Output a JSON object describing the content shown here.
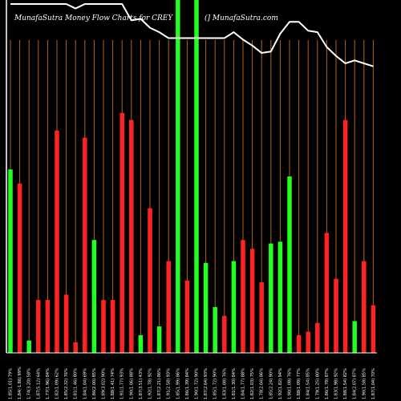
{
  "header": {
    "title": "MunafaSutra  Money Flow  Charts for CREY",
    "credit": "(] MunafaSutra.com"
  },
  "colors": {
    "background": "#000000",
    "up": "#22ff22",
    "down": "#ff2222",
    "grid": "#b5651d",
    "line": "#ffffff",
    "text": "#ffffff"
  },
  "chart_data": {
    "type": "bar",
    "title": "MunafaSutra  Money Flow  Charts for CREY",
    "xlabel": "",
    "ylabel": "",
    "grid": true,
    "bar_range": [
      0,
      100
    ],
    "line_range": [
      0,
      100
    ],
    "categories": [
      "",
      "",
      "",
      "",
      "",
      "",
      "",
      "",
      "",
      "",
      "",
      "",
      "",
      "",
      "",
      "",
      "",
      "",
      "",
      "",
      "",
      "",
      "",
      "",
      "",
      "",
      "",
      "",
      "",
      "",
      "",
      "",
      "",
      "",
      "",
      "",
      "",
      "",
      "",
      ""
    ],
    "x_tick_labels": [
      "1.85(1.01) 79%",
      "1.84(-1.86) 99%",
      "1.74(3.20) 58%",
      "1.87(5.12) 64%",
      "1.77(1.96) 84%",
      "1.82(1.09) 62%",
      "1.85(2.32) 76%",
      "1.81(1.46) 80%",
      "1.84(1.04) 69%",
      "1.86(2.00) 85%",
      "1.89(3.02) 90%",
      "1.88(1.41) 74%",
      "1.91(1.77) 93%",
      "1.90(1.06) 88%",
      "1.87(3.51) 43%",
      "1.92(1.78) 92%",
      "1.87(2.21) 86%",
      "1.91(2.58) 93%",
      "1.85(1.99) 86%",
      "1.86(1.39) 84%",
      "1.90(1.72) 90%",
      "1.87(2.64) 93%",
      "1.85(1.72) 90%",
      "1.83(1.08) 76%",
      "1.81(1.30) 84%",
      "1.84(1.77) 88%",
      "1.82(1.03) 75%",
      "1.78(2.04) 86%",
      "1.85(2.24) 90%",
      "1.92(1.82) 94%",
      "1.90(1.08) 76%",
      "1.88(1.09) 77%",
      "1.84(1.54) 85%",
      "1.79(1.25) 80%",
      "1.86(1.78) 87%",
      "1.83(1.98) 92%",
      "1.88(1.54) 82%",
      "1.84(2.07) 87%",
      "1.90(1.58) 85%",
      "1.87(1.04) 70%"
    ],
    "series": [
      {
        "values": [
          52,
          48,
          3.5,
          15,
          15,
          63,
          16.5,
          3,
          61,
          32,
          15,
          15,
          68,
          66,
          5,
          41,
          7.5,
          26,
          100,
          20.5,
          100,
          25.5,
          13,
          10.5,
          26,
          32,
          29.5,
          20,
          31,
          31.5,
          50,
          5,
          6,
          8.5,
          34,
          21,
          66,
          9,
          26,
          13.5
        ],
        "directions": [
          "up",
          "down",
          "up",
          "down",
          "down",
          "down",
          "down",
          "down",
          "down",
          "up",
          "down",
          "down",
          "down",
          "down",
          "up",
          "down",
          "up",
          "down",
          "up",
          "down",
          "up",
          "up",
          "up",
          "down",
          "up",
          "down",
          "down",
          "down",
          "up",
          "up",
          "up",
          "down",
          "down",
          "down",
          "down",
          "down",
          "down",
          "up",
          "down",
          "down"
        ]
      },
      {
        "type": "line",
        "values": [
          100,
          100,
          100,
          100,
          100,
          100,
          100,
          97,
          100,
          100,
          100,
          100,
          100,
          89,
          90,
          84,
          81,
          77,
          77,
          77,
          77,
          77,
          77,
          77,
          81,
          76,
          72,
          67,
          68,
          80,
          88,
          88,
          82,
          81,
          71,
          65,
          60,
          62,
          60,
          58
        ]
      }
    ]
  }
}
